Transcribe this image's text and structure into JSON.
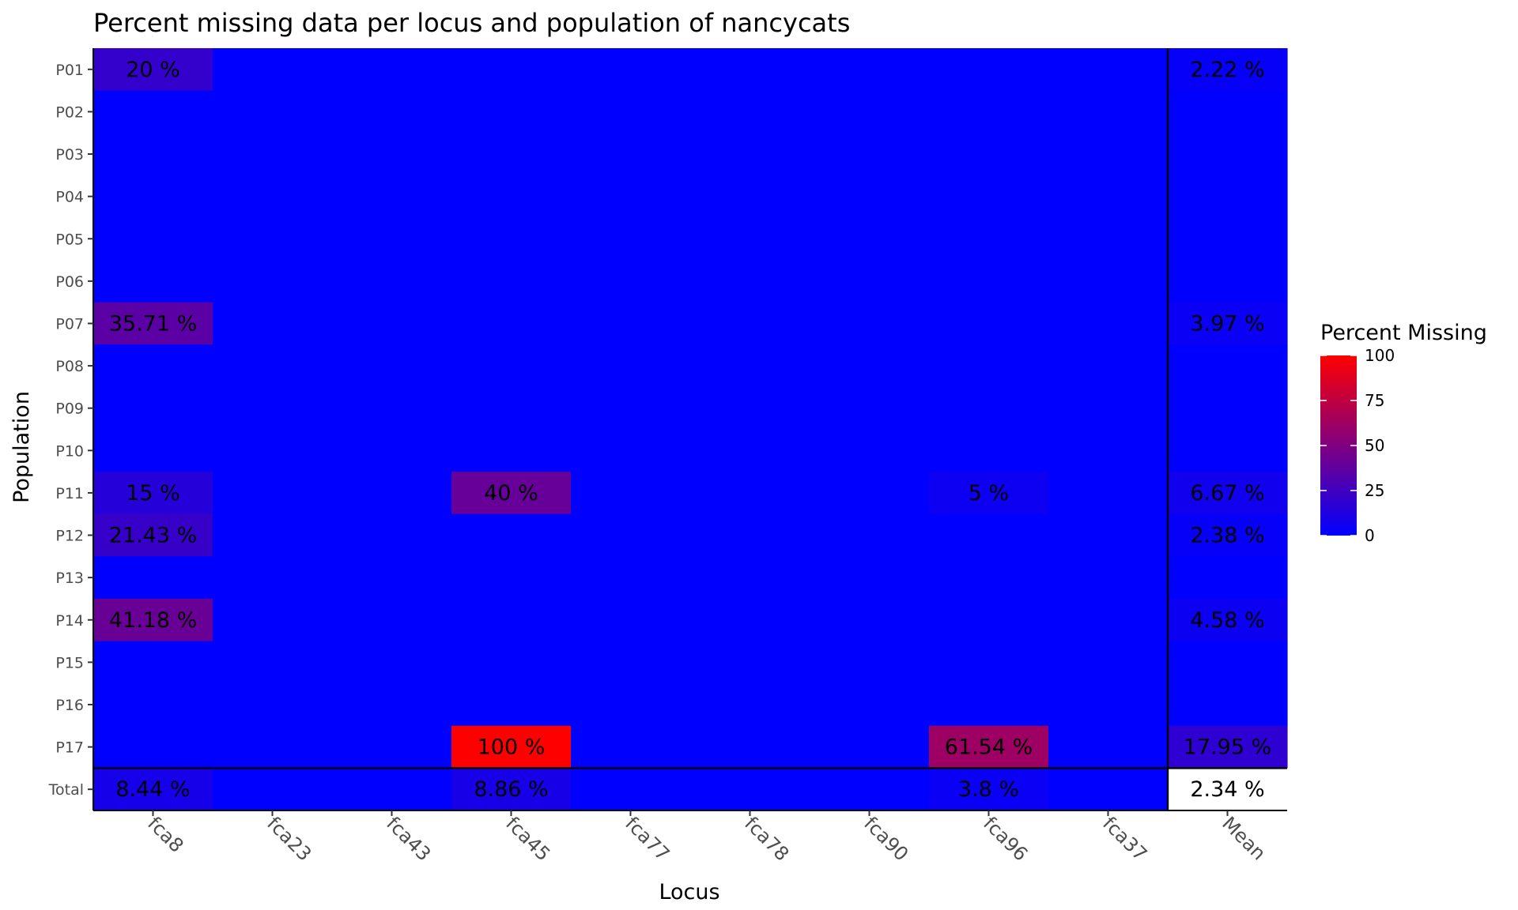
{
  "chart_data": {
    "type": "heatmap",
    "title": "Percent missing data per locus and population of nancycats",
    "xlabel": "Locus",
    "ylabel": "Population",
    "x_categories": [
      "fca8",
      "fca23",
      "fca43",
      "fca45",
      "fca77",
      "fca78",
      "fca90",
      "fca96",
      "fca37",
      "Mean"
    ],
    "y_categories": [
      "P01",
      "P02",
      "P03",
      "P04",
      "P05",
      "P06",
      "P07",
      "P08",
      "P09",
      "P10",
      "P11",
      "P12",
      "P13",
      "P14",
      "P15",
      "P16",
      "P17",
      "Total"
    ],
    "values": [
      [
        20,
        0,
        0,
        0,
        0,
        0,
        0,
        0,
        0,
        2.22
      ],
      [
        0,
        0,
        0,
        0,
        0,
        0,
        0,
        0,
        0,
        0
      ],
      [
        0,
        0,
        0,
        0,
        0,
        0,
        0,
        0,
        0,
        0
      ],
      [
        0,
        0,
        0,
        0,
        0,
        0,
        0,
        0,
        0,
        0
      ],
      [
        0,
        0,
        0,
        0,
        0,
        0,
        0,
        0,
        0,
        0
      ],
      [
        0,
        0,
        0,
        0,
        0,
        0,
        0,
        0,
        0,
        0
      ],
      [
        35.71,
        0,
        0,
        0,
        0,
        0,
        0,
        0,
        0,
        3.97
      ],
      [
        0,
        0,
        0,
        0,
        0,
        0,
        0,
        0,
        0,
        0
      ],
      [
        0,
        0,
        0,
        0,
        0,
        0,
        0,
        0,
        0,
        0
      ],
      [
        0,
        0,
        0,
        0,
        0,
        0,
        0,
        0,
        0,
        0
      ],
      [
        15,
        0,
        0,
        40,
        0,
        0,
        0,
        5,
        0,
        6.67
      ],
      [
        21.43,
        0,
        0,
        0,
        0,
        0,
        0,
        0,
        0,
        2.38
      ],
      [
        0,
        0,
        0,
        0,
        0,
        0,
        0,
        0,
        0,
        0
      ],
      [
        41.18,
        0,
        0,
        0,
        0,
        0,
        0,
        0,
        0,
        4.58
      ],
      [
        0,
        0,
        0,
        0,
        0,
        0,
        0,
        0,
        0,
        0
      ],
      [
        0,
        0,
        0,
        0,
        0,
        0,
        0,
        0,
        0,
        0
      ],
      [
        0,
        0,
        0,
        100,
        0,
        0,
        0,
        61.54,
        0,
        17.95
      ],
      [
        8.44,
        0,
        0,
        8.86,
        0,
        0,
        0,
        3.8,
        0,
        2.34
      ]
    ],
    "labels": [
      [
        "20 %",
        "",
        "",
        "",
        "",
        "",
        "",
        "",
        "",
        "2.22 %"
      ],
      [
        "",
        "",
        "",
        "",
        "",
        "",
        "",
        "",
        "",
        ""
      ],
      [
        "",
        "",
        "",
        "",
        "",
        "",
        "",
        "",
        "",
        ""
      ],
      [
        "",
        "",
        "",
        "",
        "",
        "",
        "",
        "",
        "",
        ""
      ],
      [
        "",
        "",
        "",
        "",
        "",
        "",
        "",
        "",
        "",
        ""
      ],
      [
        "",
        "",
        "",
        "",
        "",
        "",
        "",
        "",
        "",
        ""
      ],
      [
        "35.71 %",
        "",
        "",
        "",
        "",
        "",
        "",
        "",
        "",
        "3.97 %"
      ],
      [
        "",
        "",
        "",
        "",
        "",
        "",
        "",
        "",
        "",
        ""
      ],
      [
        "",
        "",
        "",
        "",
        "",
        "",
        "",
        "",
        "",
        ""
      ],
      [
        "",
        "",
        "",
        "",
        "",
        "",
        "",
        "",
        "",
        ""
      ],
      [
        "15 %",
        "",
        "",
        "40 %",
        "",
        "",
        "",
        "5 %",
        "",
        "6.67 %"
      ],
      [
        "21.43 %",
        "",
        "",
        "",
        "",
        "",
        "",
        "",
        "",
        "2.38 %"
      ],
      [
        "",
        "",
        "",
        "",
        "",
        "",
        "",
        "",
        "",
        ""
      ],
      [
        "41.18 %",
        "",
        "",
        "",
        "",
        "",
        "",
        "",
        "",
        "4.58 %"
      ],
      [
        "",
        "",
        "",
        "",
        "",
        "",
        "",
        "",
        "",
        ""
      ],
      [
        "",
        "",
        "",
        "",
        "",
        "",
        "",
        "",
        "",
        ""
      ],
      [
        "",
        "",
        "",
        "100 %",
        "",
        "",
        "",
        "61.54 %",
        "",
        "17.95 %"
      ],
      [
        "8.44 %",
        "",
        "",
        "8.86 %",
        "",
        "",
        "",
        "3.8 %",
        "",
        "2.34 %"
      ]
    ],
    "uncolored_cells": [
      [
        17,
        9
      ]
    ],
    "color_scale": {
      "low": "#0000ff",
      "high": "#ff0000",
      "range": [
        0,
        100
      ]
    },
    "legend": {
      "title": "Percent Missing",
      "ticks": [
        100,
        75,
        50,
        25,
        0
      ],
      "tick_labels": [
        "100",
        "75",
        "50",
        "25",
        "0"
      ],
      "position": "right"
    }
  }
}
